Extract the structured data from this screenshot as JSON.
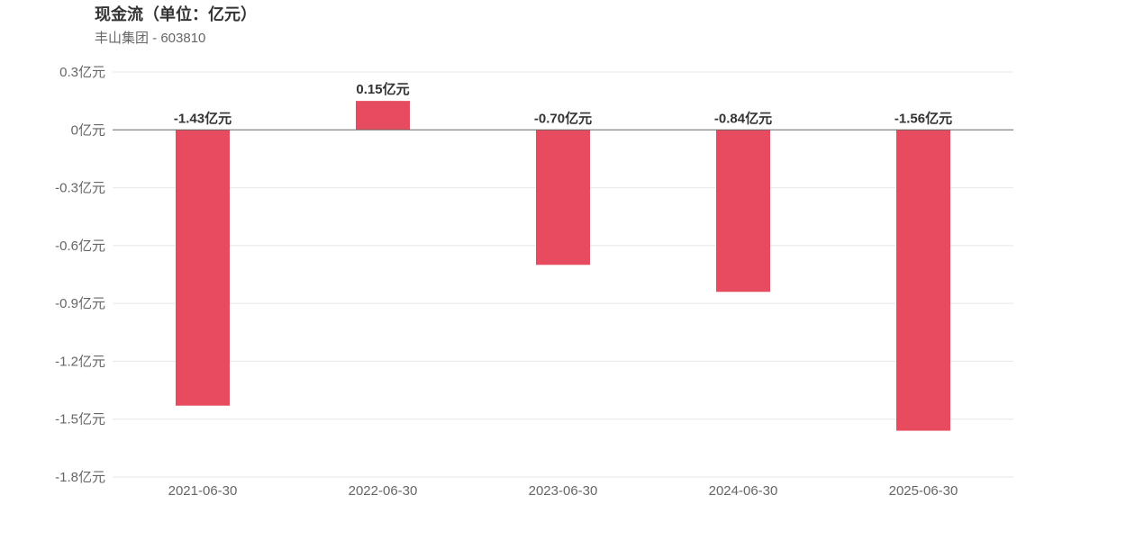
{
  "chart_data": {
    "type": "bar",
    "title": "现金流（单位：亿元）",
    "subtitle": "丰山集团 - 603810",
    "categories": [
      "2021-06-30",
      "2022-06-30",
      "2023-06-30",
      "2024-06-30",
      "2025-06-30"
    ],
    "values": [
      -1.43,
      0.15,
      -0.7,
      -0.84,
      -1.56
    ],
    "data_labels": [
      "-1.43亿元",
      "0.15亿元",
      "-0.70亿元",
      "-0.84亿元",
      "-1.56亿元"
    ],
    "y_ticks": [
      0.3,
      0,
      -0.3,
      -0.6,
      -0.9,
      -1.2,
      -1.5,
      -1.8
    ],
    "y_tick_labels": [
      "0.3亿元",
      "0亿元",
      "-0.3亿元",
      "-0.6亿元",
      "-0.9亿元",
      "-1.2亿元",
      "-1.5亿元",
      "-1.8亿元"
    ],
    "ylim": [
      -1.8,
      0.3
    ],
    "xlabel": "",
    "ylabel": "",
    "grid": true,
    "legend": false,
    "colors": {
      "bar": "#e64b5f",
      "grid": "#e8e8e8",
      "zero_line": "#666666",
      "tick_text": "#666666",
      "label_text": "#333333"
    }
  }
}
